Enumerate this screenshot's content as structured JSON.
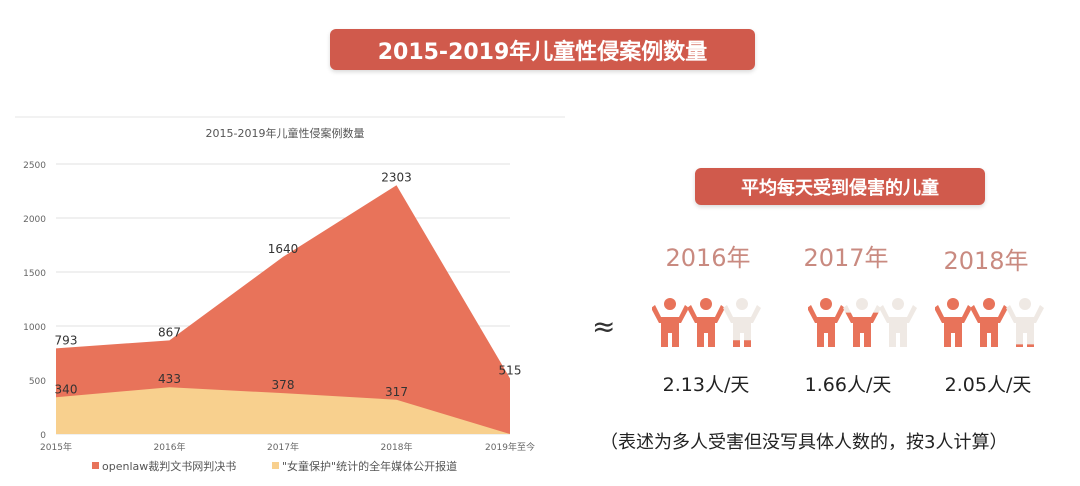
{
  "main_title": "2015-2019年儿童性侵案例数量",
  "chart_data": {
    "type": "area",
    "title": "2015-2019年儿童性侵案例数量",
    "categories": [
      "2015年",
      "2016年",
      "2017年",
      "2018年",
      "2019年至今"
    ],
    "series": [
      {
        "name": "openlaw裁判文书网判决书",
        "values": [
          793,
          867,
          1640,
          2303,
          515
        ],
        "color": "#e8735a"
      },
      {
        "name": "\"女童保护\"统计的全年媒体公开报道",
        "values": [
          340,
          433,
          378,
          317,
          0
        ],
        "color": "#f8d08e"
      }
    ],
    "data_labels": [
      [
        "793",
        "867",
        "1640",
        "2303",
        "515"
      ],
      [
        "340",
        "433",
        "378",
        "317",
        ""
      ]
    ],
    "yticks": [
      0,
      500,
      1000,
      1500,
      2000,
      2500
    ],
    "ylim": [
      0,
      2500
    ],
    "grid": true,
    "legend": "bottom"
  },
  "panel": {
    "title": "平均每天受到侵害的儿童",
    "approx_symbol": "≈",
    "items": [
      {
        "year": "2016年",
        "rate": "2.13人/天",
        "value": 2.13
      },
      {
        "year": "2017年",
        "rate": "1.66人/天",
        "value": 1.66
      },
      {
        "year": "2018年",
        "rate": "2.05人/天",
        "value": 2.05
      }
    ],
    "note": "（表述为多人受害但没写具体人数的，按3人计算）",
    "colors": {
      "filled": "#e8735a",
      "empty": "#efe9e4"
    }
  }
}
